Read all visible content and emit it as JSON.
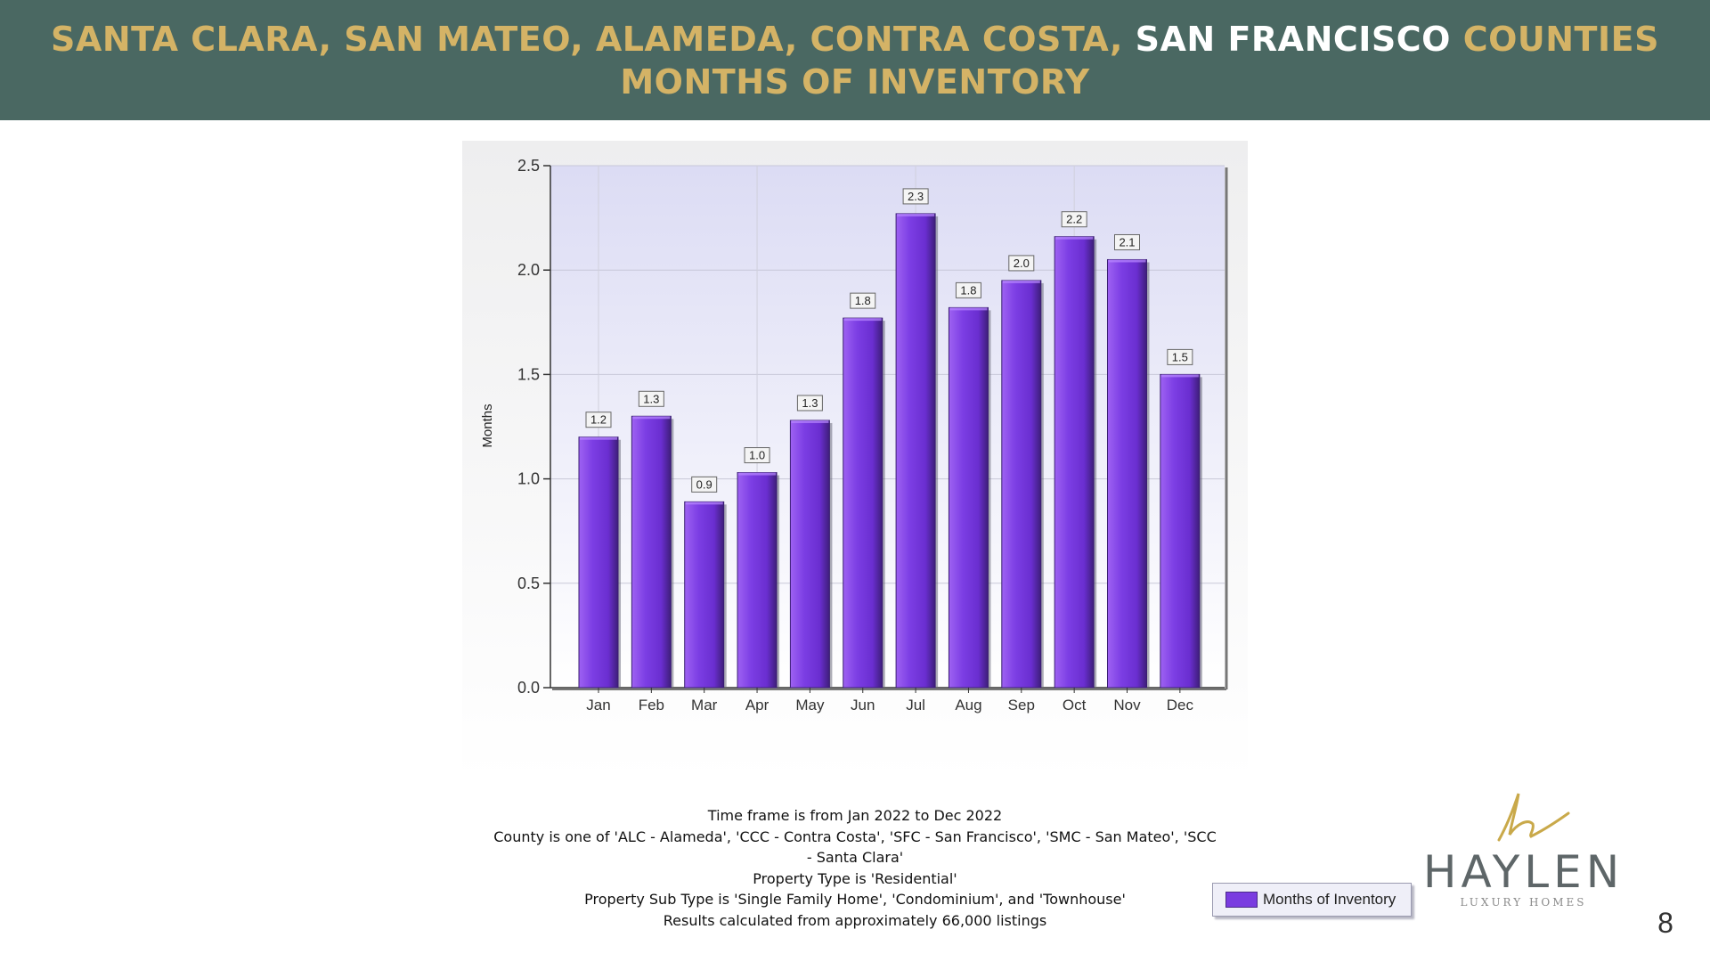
{
  "header": {
    "line1_part1": "SANTA CLARA, SAN MATEO, ALAMEDA, CONTRA COSTA, ",
    "line1_part2": "SAN FRANCISCO",
    "line1_part3": " COUNTIES",
    "line2": "MONTHS OF INVENTORY"
  },
  "chart_data": {
    "type": "bar",
    "categories": [
      "Jan",
      "Feb",
      "Mar",
      "Apr",
      "May",
      "Jun",
      "Jul",
      "Aug",
      "Sep",
      "Oct",
      "Nov",
      "Dec"
    ],
    "values": [
      1.2,
      1.3,
      0.89,
      1.03,
      1.28,
      1.77,
      2.27,
      1.82,
      1.95,
      2.16,
      2.05,
      1.5
    ],
    "data_labels": [
      "1.2",
      "1.3",
      "0.9",
      "1.0",
      "1.3",
      "1.8",
      "2.3",
      "1.8",
      "2.0",
      "2.2",
      "2.1",
      "1.5"
    ],
    "series": [
      {
        "name": "Months of Inventory"
      }
    ],
    "ylabel": "Months",
    "xlabel": "",
    "ylim": [
      0,
      2.5
    ],
    "yticks": [
      "0.0",
      "0.5",
      "1.0",
      "1.5",
      "2.0",
      "2.5"
    ],
    "grid": true,
    "legend_position": "bottom",
    "bar_color": "#7a3ce0"
  },
  "notes": {
    "line1": "Time frame is from Jan 2022 to Dec 2022",
    "line2": "County is one of 'ALC - Alameda', 'CCC - Contra Costa', 'SFC - San Francisco', 'SMC - San Mateo', 'SCC",
    "line3": "- Santa Clara'",
    "line4": "Property Type is 'Residential'",
    "line5": "Property Sub Type is 'Single Family Home', 'Condominium', and 'Townhouse'",
    "line6": "Results calculated from approximately 66,000 listings"
  },
  "logo": {
    "name": "HAYLEN",
    "sub": "LUXURY HOMES"
  },
  "page_number": "8"
}
